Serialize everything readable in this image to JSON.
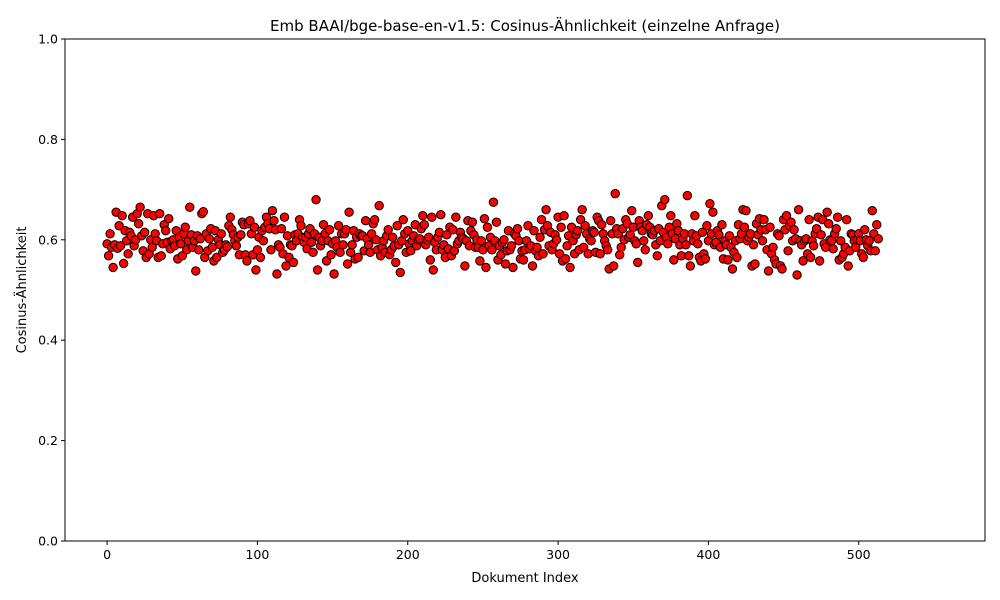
{
  "chart_data": {
    "type": "scatter",
    "title": "Emb BAAI/bge-base-en-v1.5: Cosinus-Ähnlichkeit (einzelne Anfrage)",
    "xlabel": "Dokument Index",
    "ylabel": "Cosinus-Ähnlichkeit",
    "xlim": [
      -28,
      584
    ],
    "ylim": [
      0.0,
      1.0
    ],
    "xticks": [
      0,
      100,
      200,
      300,
      400,
      500
    ],
    "xtick_labels": [
      "0",
      "100",
      "200",
      "300",
      "400",
      "500"
    ],
    "yticks": [
      0.0,
      0.2,
      0.4,
      0.6,
      0.8,
      1.0
    ],
    "ytick_labels": [
      "0.0",
      "0.2",
      "0.4",
      "0.6",
      "0.8",
      "1.0"
    ],
    "grid": false,
    "marker_color": "#ff0000",
    "marker_edge_color": "#000000",
    "y": [
      0.592,
      0.568,
      0.612,
      0.585,
      0.545,
      0.59,
      0.655,
      0.583,
      0.628,
      0.588,
      0.648,
      0.553,
      0.618,
      0.598,
      0.572,
      0.615,
      0.608,
      0.645,
      0.588,
      0.6,
      0.652,
      0.632,
      0.665,
      0.608,
      0.578,
      0.615,
      0.565,
      0.652,
      0.572,
      0.6,
      0.585,
      0.648,
      0.612,
      0.598,
      0.565,
      0.652,
      0.568,
      0.592,
      0.63,
      0.618,
      0.595,
      0.642,
      0.582,
      0.598,
      0.6,
      0.588,
      0.618,
      0.562,
      0.605,
      0.592,
      0.568,
      0.612,
      0.625,
      0.58,
      0.598,
      0.665,
      0.61,
      0.585,
      0.598,
      0.538,
      0.608,
      0.58,
      0.602,
      0.652,
      0.656,
      0.565,
      0.612,
      0.578,
      0.602,
      0.622,
      0.585,
      0.558,
      0.618,
      0.565,
      0.6,
      0.59,
      0.612,
      0.575,
      0.58,
      0.59,
      0.586,
      0.628,
      0.645,
      0.62,
      0.61,
      0.598,
      0.588,
      0.605,
      0.57,
      0.61,
      0.635,
      0.63,
      0.57,
      0.558,
      0.632,
      0.638,
      0.612,
      0.57,
      0.625,
      0.54,
      0.58,
      0.605,
      0.565,
      0.618,
      0.598,
      0.625,
      0.645,
      0.632,
      0.622,
      0.58,
      0.658,
      0.638,
      0.62,
      0.532,
      0.59,
      0.585,
      0.622,
      0.572,
      0.645,
      0.548,
      0.608,
      0.565,
      0.59,
      0.588,
      0.555,
      0.61,
      0.598,
      0.612,
      0.64,
      0.628,
      0.605,
      0.595,
      0.605,
      0.582,
      0.612,
      0.622,
      0.595,
      0.575,
      0.612,
      0.68,
      0.54,
      0.605,
      0.588,
      0.598,
      0.63,
      0.612,
      0.558,
      0.598,
      0.62,
      0.57,
      0.592,
      0.532,
      0.598,
      0.585,
      0.628,
      0.575,
      0.612,
      0.59,
      0.612,
      0.62,
      0.552,
      0.655,
      0.575,
      0.59,
      0.618,
      0.562,
      0.605,
      0.565,
      0.612,
      0.608,
      0.608,
      0.578,
      0.638,
      0.602,
      0.59,
      0.575,
      0.612,
      0.632,
      0.64,
      0.6,
      0.58,
      0.668,
      0.568,
      0.585,
      0.598,
      0.575,
      0.608,
      0.62,
      0.57,
      0.58,
      0.605,
      0.588,
      0.555,
      0.628,
      0.59,
      0.535,
      0.598,
      0.64,
      0.612,
      0.575,
      0.618,
      0.592,
      0.578,
      0.598,
      0.608,
      0.63,
      0.588,
      0.6,
      0.602,
      0.622,
      0.648,
      0.63,
      0.59,
      0.6,
      0.605,
      0.56,
      0.645,
      0.54,
      0.595,
      0.58,
      0.605,
      0.615,
      0.65,
      0.58,
      0.59,
      0.565,
      0.61,
      0.582,
      0.625,
      0.568,
      0.62,
      0.578,
      0.645,
      0.592,
      0.598,
      0.615,
      0.605,
      0.602,
      0.548,
      0.598,
      0.638,
      0.588,
      0.618,
      0.635,
      0.61,
      0.585,
      0.6,
      0.585,
      0.558,
      0.598,
      0.58,
      0.642,
      0.545,
      0.625,
      0.588,
      0.605,
      0.58,
      0.675,
      0.598,
      0.635,
      0.56,
      0.588,
      0.57,
      0.595,
      0.6,
      0.552,
      0.578,
      0.618,
      0.58,
      0.588,
      0.545,
      0.612,
      0.608,
      0.622,
      0.598,
      0.562,
      0.578,
      0.56,
      0.58,
      0.598,
      0.628,
      0.582,
      0.588,
      0.548,
      0.618,
      0.578,
      0.585,
      0.568,
      0.605,
      0.64,
      0.572,
      0.62,
      0.66,
      0.628,
      0.588,
      0.615,
      0.58,
      0.592,
      0.61,
      0.6,
      0.645,
      0.572,
      0.625,
      0.558,
      0.648,
      0.562,
      0.588,
      0.608,
      0.545,
      0.625,
      0.598,
      0.572,
      0.61,
      0.618,
      0.58,
      0.64,
      0.66,
      0.585,
      0.628,
      0.612,
      0.572,
      0.602,
      0.598,
      0.618,
      0.615,
      0.575,
      0.645,
      0.638,
      0.572,
      0.63,
      0.612,
      0.598,
      0.588,
      0.58,
      0.542,
      0.638,
      0.612,
      0.548,
      0.692,
      0.622,
      0.612,
      0.57,
      0.585,
      0.622,
      0.6,
      0.64,
      0.632,
      0.605,
      0.61,
      0.658,
      0.625,
      0.598,
      0.592,
      0.555,
      0.638,
      0.625,
      0.618,
      0.598,
      0.58,
      0.63,
      0.648,
      0.625,
      0.612,
      0.61,
      0.618,
      0.59,
      0.568,
      0.622,
      0.598,
      0.668,
      0.615,
      0.68,
      0.605,
      0.592,
      0.625,
      0.648,
      0.612,
      0.56,
      0.602,
      0.632,
      0.618,
      0.59,
      0.568,
      0.602,
      0.612,
      0.59,
      0.688,
      0.568,
      0.548,
      0.612,
      0.598,
      0.648,
      0.608,
      0.592,
      0.565,
      0.558,
      0.615,
      0.572,
      0.562,
      0.628,
      0.598,
      0.672,
      0.612,
      0.655,
      0.59,
      0.595,
      0.618,
      0.61,
      0.585,
      0.63,
      0.562,
      0.598,
      0.59,
      0.56,
      0.608,
      0.585,
      0.542,
      0.575,
      0.598,
      0.565,
      0.63,
      0.602,
      0.612,
      0.66,
      0.625,
      0.658,
      0.598,
      0.605,
      0.612,
      0.548,
      0.59,
      0.552,
      0.632,
      0.61,
      0.642,
      0.62,
      0.598,
      0.64,
      0.62,
      0.58,
      0.538,
      0.625,
      0.572,
      0.585,
      0.56,
      0.552,
      0.612,
      0.608,
      0.548,
      0.542,
      0.64,
      0.62,
      0.648,
      0.578,
      0.628,
      0.635,
      0.598,
      0.62,
      0.602,
      0.53,
      0.66,
      0.598,
      0.59,
      0.558,
      0.598,
      0.602,
      0.572,
      0.64,
      0.565,
      0.598,
      0.588,
      0.612,
      0.622,
      0.645,
      0.558,
      0.61,
      0.64,
      0.592,
      0.585,
      0.655,
      0.632,
      0.6,
      0.598,
      0.582,
      0.612,
      0.622,
      0.645,
      0.56,
      0.598,
      0.565,
      0.572,
      0.585,
      0.64,
      0.548,
      0.578,
      0.612,
      0.61,
      0.598,
      0.585,
      0.6,
      0.612,
      0.598,
      0.572,
      0.565,
      0.62,
      0.6,
      0.588,
      0.598,
      0.578,
      0.658,
      0.612,
      0.578,
      0.63,
      0.602
    ]
  }
}
